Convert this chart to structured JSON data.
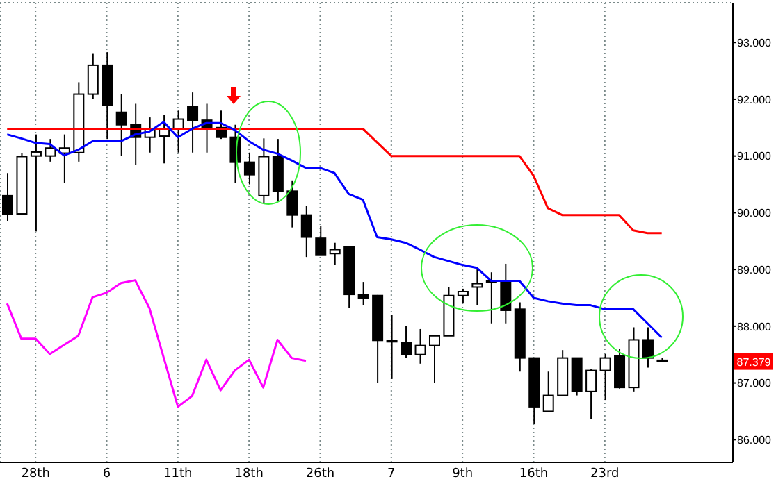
{
  "chart_data": {
    "type": "candlestick",
    "categories": [
      null,
      null,
      "28th",
      null,
      null,
      null,
      null,
      "6",
      null,
      null,
      null,
      null,
      "11th",
      null,
      null,
      null,
      null,
      "18th",
      null,
      null,
      null,
      null,
      "26th",
      null,
      null,
      null,
      null,
      "7",
      null,
      null,
      null,
      null,
      "9th",
      null,
      null,
      null,
      null,
      "16th",
      null,
      null,
      null,
      null,
      "23rd",
      null,
      null,
      null,
      null
    ],
    "ohlc": [
      [
        90.3,
        90.7,
        89.85,
        89.98
      ],
      [
        89.98,
        91.05,
        89.98,
        90.99
      ],
      [
        91.0,
        91.38,
        89.67,
        91.07
      ],
      [
        91.0,
        91.3,
        90.9,
        91.14
      ],
      [
        91.05,
        91.38,
        90.52,
        91.14
      ],
      [
        91.06,
        92.3,
        90.9,
        92.09
      ],
      [
        92.09,
        92.8,
        92.0,
        92.6
      ],
      [
        92.6,
        92.83,
        91.3,
        91.9
      ],
      [
        91.77,
        92.09,
        91.0,
        91.55
      ],
      [
        91.55,
        91.92,
        90.84,
        91.33
      ],
      [
        91.33,
        91.68,
        91.06,
        91.48
      ],
      [
        91.35,
        91.72,
        90.87,
        91.48
      ],
      [
        91.48,
        91.8,
        91.06,
        91.65
      ],
      [
        91.87,
        92.12,
        91.06,
        91.63
      ],
      [
        91.63,
        91.92,
        91.06,
        91.5
      ],
      [
        91.5,
        91.8,
        91.3,
        91.33
      ],
      [
        91.33,
        91.55,
        90.52,
        90.89
      ],
      [
        90.89,
        91.06,
        90.5,
        90.67
      ],
      [
        90.3,
        91.31,
        90.16,
        90.99
      ],
      [
        90.99,
        91.3,
        90.2,
        90.38
      ],
      [
        90.38,
        90.57,
        89.74,
        89.96
      ],
      [
        89.96,
        90.12,
        89.22,
        89.57
      ],
      [
        89.55,
        89.76,
        89.25,
        89.25
      ],
      [
        89.28,
        89.47,
        89.08,
        89.35
      ],
      [
        89.4,
        89.4,
        88.32,
        88.56
      ],
      [
        88.56,
        88.78,
        88.37,
        88.5
      ],
      [
        88.54,
        88.55,
        87.0,
        87.75
      ],
      [
        87.75,
        88.2,
        87.07,
        87.73
      ],
      [
        87.71,
        88.0,
        87.44,
        87.5
      ],
      [
        87.5,
        87.95,
        87.34,
        87.66
      ],
      [
        87.66,
        87.83,
        87.0,
        87.83
      ],
      [
        87.83,
        88.69,
        87.83,
        88.54
      ],
      [
        88.54,
        88.66,
        88.4,
        88.61
      ],
      [
        88.69,
        89.02,
        88.37,
        88.75
      ],
      [
        88.78,
        88.95,
        88.05,
        88.8
      ],
      [
        88.8,
        89.1,
        88.05,
        88.28
      ],
      [
        88.3,
        88.42,
        87.2,
        87.44
      ],
      [
        87.44,
        87.44,
        86.28,
        86.58
      ],
      [
        86.5,
        87.2,
        86.5,
        86.78
      ],
      [
        86.78,
        87.58,
        86.78,
        87.44
      ],
      [
        87.44,
        87.44,
        86.78,
        86.85
      ],
      [
        86.85,
        87.25,
        86.36,
        87.22
      ],
      [
        87.22,
        87.51,
        86.7,
        87.44
      ],
      [
        87.48,
        87.6,
        86.9,
        86.92
      ],
      [
        86.92,
        87.98,
        86.85,
        87.76
      ],
      [
        87.76,
        87.98,
        87.27,
        87.44
      ],
      [
        87.4,
        87.44,
        87.37,
        87.379
      ]
    ],
    "series": [
      {
        "type": "line",
        "color": "#ff0000",
        "values": [
          91.48,
          91.48,
          91.48,
          91.48,
          91.48,
          91.48,
          91.48,
          91.48,
          91.48,
          91.48,
          91.48,
          91.48,
          91.48,
          91.48,
          91.48,
          91.48,
          91.48,
          91.48,
          91.48,
          91.48,
          91.48,
          91.48,
          91.48,
          91.48,
          91.48,
          91.48,
          91.24,
          91.0,
          91.0,
          91.0,
          91.0,
          91.0,
          91.0,
          91.0,
          91.0,
          91.0,
          91.0,
          90.65,
          90.08,
          89.96,
          89.96,
          89.96,
          89.96,
          89.96,
          89.69,
          89.64,
          89.64
        ]
      },
      {
        "type": "line",
        "color": "#0000ff",
        "values": [
          91.38,
          91.31,
          91.23,
          91.21,
          91.01,
          91.11,
          91.26,
          91.26,
          91.26,
          91.38,
          91.43,
          91.6,
          91.33,
          91.48,
          91.58,
          91.58,
          91.46,
          91.26,
          91.11,
          91.04,
          90.92,
          90.79,
          90.79,
          90.7,
          90.33,
          90.23,
          89.57,
          89.53,
          89.47,
          89.35,
          89.22,
          89.15,
          89.08,
          89.03,
          88.8,
          88.8,
          88.8,
          88.5,
          88.44,
          88.4,
          88.37,
          88.37,
          88.3,
          88.3,
          88.3,
          88.05,
          87.8
        ]
      },
      {
        "type": "line",
        "color": "#ff00ff",
        "values": [
          88.4,
          87.78,
          87.78,
          87.51,
          87.67,
          87.83,
          88.51,
          88.59,
          88.76,
          88.81,
          88.32,
          87.45,
          86.58,
          86.77,
          87.41,
          86.87,
          87.22,
          87.41,
          86.92,
          87.76,
          87.44,
          87.39,
          null,
          null,
          null,
          null,
          null,
          null,
          null,
          null,
          null,
          null,
          null,
          null,
          null,
          null,
          null,
          null,
          null,
          null,
          null,
          null,
          null,
          null,
          null,
          null,
          null
        ]
      }
    ],
    "ylim": [
      85.6,
      93.7
    ],
    "yticks": [
      {
        "value": 86,
        "label": "86.000"
      },
      {
        "value": 87,
        "label": "87.000"
      },
      {
        "value": 88,
        "label": "88.000"
      },
      {
        "value": 89,
        "label": "89.000"
      },
      {
        "value": 90,
        "label": "90.000"
      },
      {
        "value": 91,
        "label": "91.000"
      },
      {
        "value": 92,
        "label": "92.000"
      },
      {
        "value": 93,
        "label": "93.000"
      }
    ],
    "annotations": [
      "87.379"
    ],
    "grid": true,
    "marker": "none",
    "line_style": "solid"
  }
}
